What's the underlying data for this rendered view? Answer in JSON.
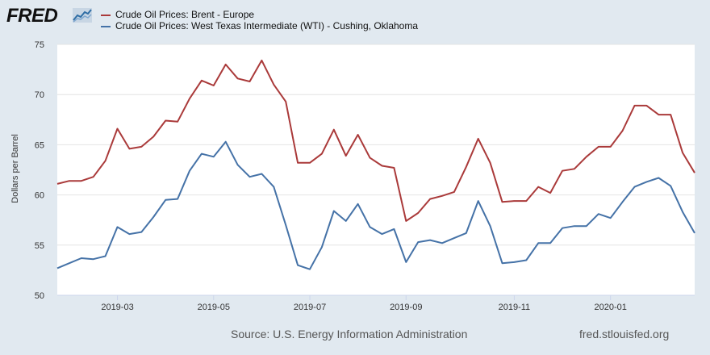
{
  "brand": {
    "logo_text": "FRED",
    "accent": "#2f6ea5"
  },
  "footer": {
    "source": "Source: U.S. Energy Information Administration",
    "url": "fred.stlouisfed.org"
  },
  "chart_data": {
    "type": "line",
    "title": "",
    "xlabel": "",
    "ylabel": "Dollars per Barrel",
    "ylim": [
      50,
      75
    ],
    "yticks": [
      50,
      55,
      60,
      65,
      70,
      75
    ],
    "x_tick_labels": [
      "2019-03",
      "2019-05",
      "2019-07",
      "2019-09",
      "2019-11",
      "2020-01"
    ],
    "x_tick_index": [
      5,
      13,
      21,
      29,
      38,
      46
    ],
    "background": "#ffffff",
    "grid": true,
    "series": [
      {
        "name": "Crude Oil Prices: Brent - Europe",
        "color": "#aa3a3a",
        "values": [
          61.1,
          61.4,
          61.4,
          61.8,
          63.4,
          66.6,
          64.6,
          64.8,
          65.8,
          67.4,
          67.3,
          69.6,
          71.4,
          70.9,
          73.0,
          71.6,
          71.3,
          73.4,
          71.0,
          69.3,
          63.2,
          63.2,
          64.1,
          66.5,
          63.9,
          66.0,
          63.7,
          62.9,
          62.7,
          57.4,
          58.2,
          59.6,
          59.9,
          60.3,
          62.8,
          65.6,
          63.2,
          59.3,
          59.4,
          59.4,
          60.8,
          60.2,
          62.4,
          62.6,
          63.8,
          64.8,
          64.8,
          66.4,
          68.9,
          68.9,
          68.0,
          68.0,
          64.2,
          62.2
        ]
      },
      {
        "name": "Crude Oil Prices: West Texas Intermediate (WTI) - Cushing, Oklahoma",
        "color": "#4572a7",
        "values": [
          52.7,
          53.2,
          53.7,
          53.6,
          53.9,
          56.8,
          56.1,
          56.3,
          57.8,
          59.5,
          59.6,
          62.4,
          64.1,
          63.8,
          65.3,
          63.0,
          61.8,
          62.1,
          60.8,
          57.0,
          53.0,
          52.6,
          54.8,
          58.4,
          57.4,
          59.1,
          56.8,
          56.1,
          56.6,
          53.3,
          55.3,
          55.5,
          55.2,
          55.7,
          56.2,
          59.4,
          56.9,
          53.2,
          53.3,
          53.5,
          55.2,
          55.2,
          56.7,
          56.9,
          56.9,
          58.1,
          57.7,
          59.3,
          60.8,
          61.3,
          61.7,
          60.9,
          58.3,
          56.2
        ]
      }
    ]
  }
}
